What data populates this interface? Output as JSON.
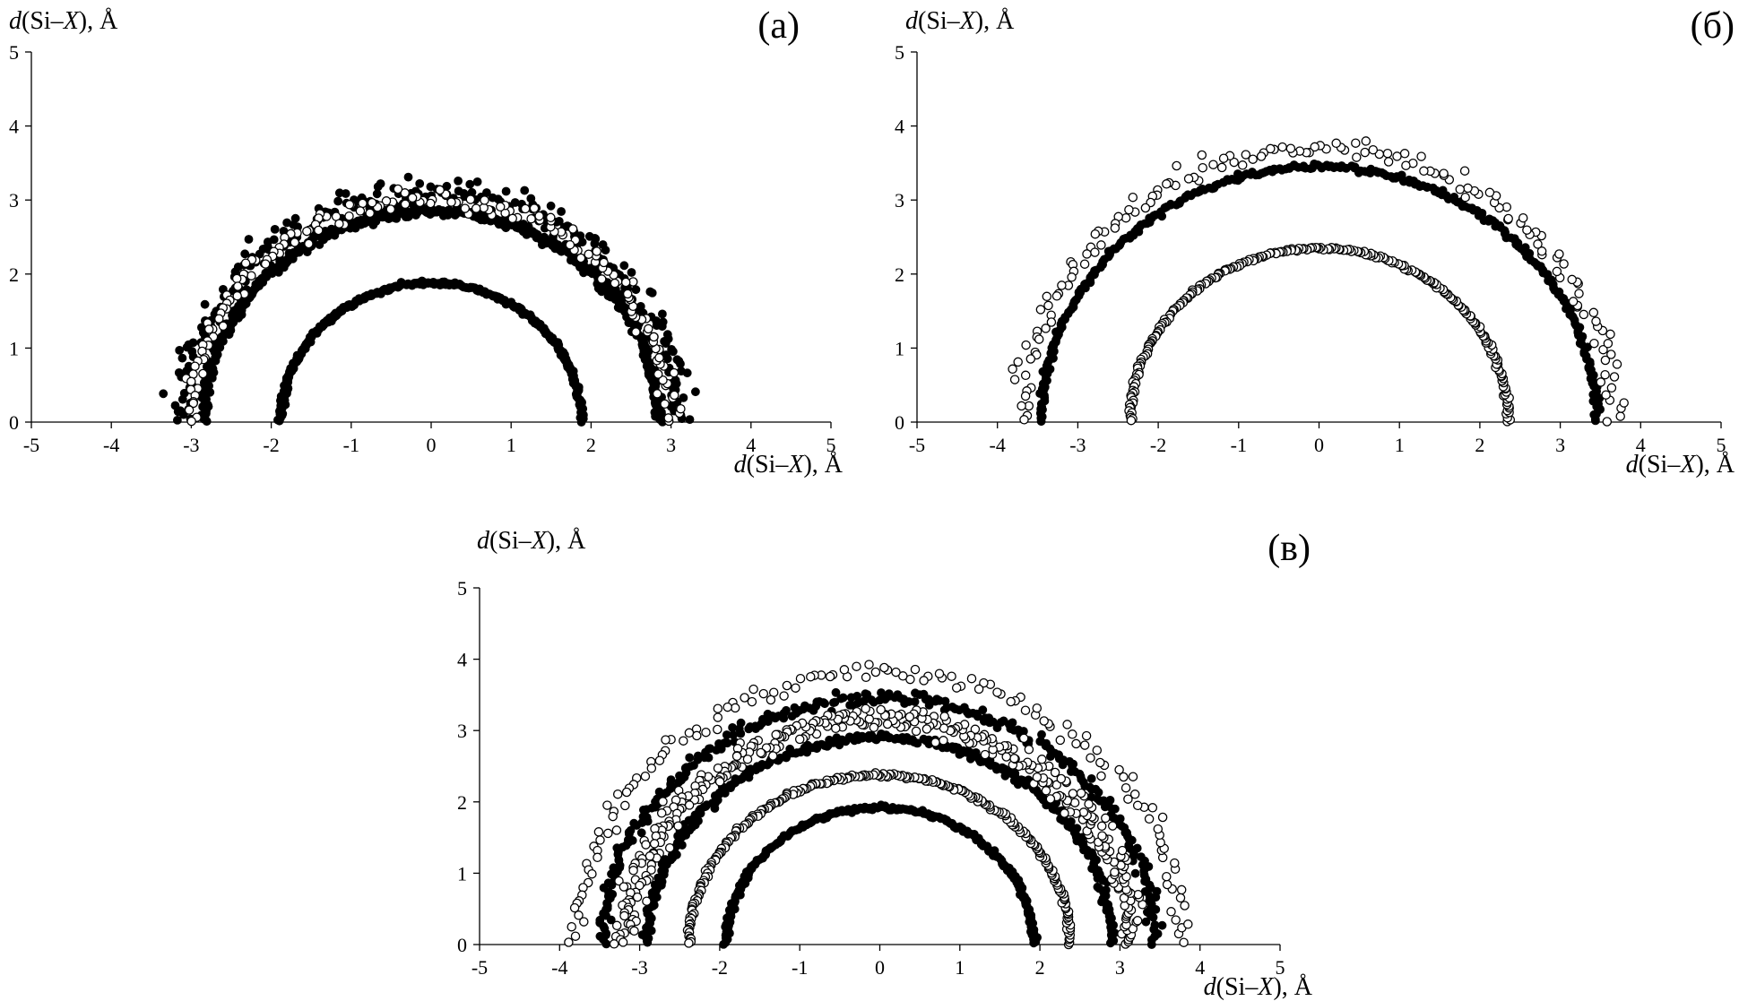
{
  "chart_data": [
    {
      "type": "scatter",
      "panel_label": "(a)",
      "xlabel": {
        "italic": "d",
        "text": "(Si–",
        "var": "X",
        "unit": "), Å"
      },
      "ylabel": {
        "italic": "d",
        "text": "(Si–",
        "var": "X",
        "unit": "), Å"
      },
      "xlim": [
        -5,
        5
      ],
      "ylim": [
        0,
        5
      ],
      "xticks": [
        "-5",
        "-4",
        "-3",
        "-2",
        "-1",
        "0",
        "1",
        "2",
        "3",
        "4",
        "5"
      ],
      "yticks": [
        "0",
        "1",
        "2",
        "3",
        "4",
        "5"
      ],
      "grid": false,
      "series": [
        {
          "marker": "filled",
          "arcs": [
            {
              "r": 1.88,
              "spread": 0.05,
              "n": 320
            },
            {
              "r": 2.85,
              "spread": 0.12,
              "n": 420
            },
            {
              "r": 3.1,
              "spread": 0.35,
              "n": 260
            }
          ]
        },
        {
          "marker": "open",
          "arcs": [
            {
              "r": 3.0,
              "spread": 0.25,
              "n": 170
            }
          ]
        }
      ]
    },
    {
      "type": "scatter",
      "panel_label": "(б)",
      "xlabel": {
        "italic": "d",
        "text": "(Si–",
        "var": "X",
        "unit": "), Å"
      },
      "ylabel": {
        "italic": "d",
        "text": "(Si–",
        "var": "X",
        "unit": "), Å"
      },
      "xlim": [
        -5,
        5
      ],
      "ylim": [
        0,
        5
      ],
      "xticks": [
        "-5",
        "-4",
        "-3",
        "-2",
        "-1",
        "0",
        "1",
        "2",
        "3",
        "4",
        "5"
      ],
      "yticks": [
        "0",
        "1",
        "2",
        "3",
        "4",
        "5"
      ],
      "grid": false,
      "series": [
        {
          "marker": "filled",
          "arcs": [
            {
              "r": 3.45,
              "spread": 0.06,
              "n": 320
            }
          ]
        },
        {
          "marker": "open",
          "arcs": [
            {
              "r": 2.35,
              "spread": 0.04,
              "n": 260
            },
            {
              "r": 3.7,
              "spread": 0.25,
              "n": 160
            }
          ]
        }
      ]
    },
    {
      "type": "scatter",
      "panel_label": "(в)",
      "xlabel": {
        "italic": "d",
        "text": "(Si–",
        "var": "X",
        "unit": "), Å"
      },
      "ylabel": {
        "italic": "d",
        "text": "(Si–",
        "var": "X",
        "unit": "), Å"
      },
      "xlim": [
        -5,
        5
      ],
      "ylim": [
        0,
        5
      ],
      "xticks": [
        "-5",
        "-4",
        "-3",
        "-2",
        "-1",
        "0",
        "1",
        "2",
        "3",
        "4",
        "5"
      ],
      "yticks": [
        "0",
        "1",
        "2",
        "3",
        "4",
        "5"
      ],
      "grid": false,
      "series": [
        {
          "marker": "filled",
          "arcs": [
            {
              "r": 1.92,
              "spread": 0.05,
              "n": 240
            },
            {
              "r": 2.9,
              "spread": 0.1,
              "n": 300
            },
            {
              "r": 3.45,
              "spread": 0.15,
              "n": 280
            }
          ]
        },
        {
          "marker": "open",
          "arcs": [
            {
              "r": 2.38,
              "spread": 0.05,
              "n": 260
            },
            {
              "r": 3.15,
              "spread": 0.3,
              "n": 340
            },
            {
              "r": 3.8,
              "spread": 0.25,
              "n": 140
            }
          ]
        }
      ]
    }
  ]
}
